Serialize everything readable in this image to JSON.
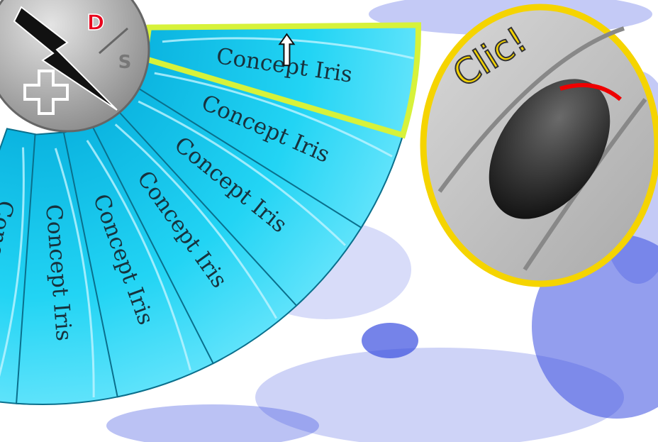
{
  "menu": {
    "items": [
      {
        "label": "Concept Iris",
        "selected": true
      },
      {
        "label": "Concept Iris"
      },
      {
        "label": "Concept Iris"
      },
      {
        "label": "Concept Iris"
      },
      {
        "label": "Concept Iris"
      },
      {
        "label": "Concept Iris"
      },
      {
        "label": "Concept Iris"
      }
    ]
  },
  "hub": {
    "top": "D",
    "bottom": "S"
  },
  "callout": {
    "text": "Clic!"
  }
}
